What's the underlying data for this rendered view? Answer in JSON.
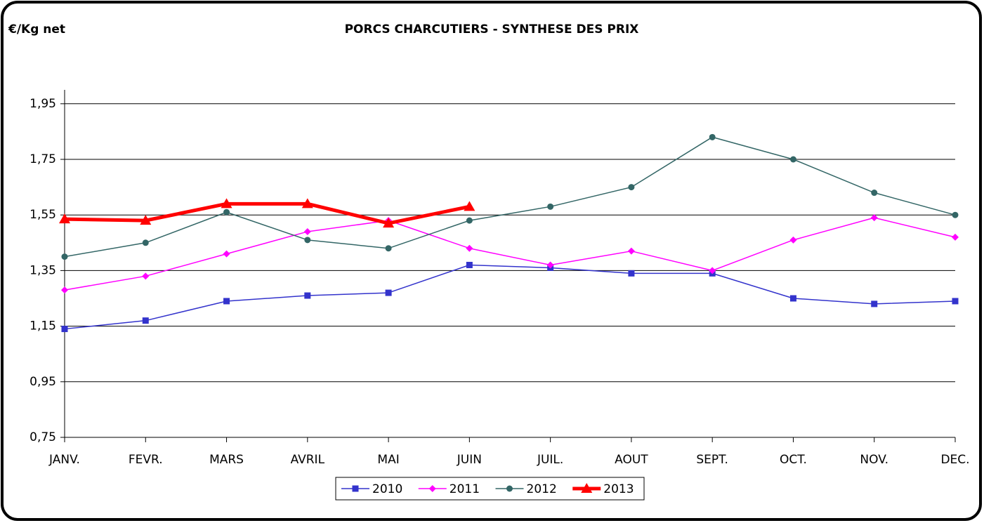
{
  "chart_data": {
    "type": "line",
    "title": "PORCS CHARCUTIERS - SYNTHESE DES PRIX",
    "y_label": "€/Kg net",
    "categories": [
      "JANV.",
      "FEVR.",
      "MARS",
      "AVRIL",
      "MAI",
      "JUIN",
      "JUIL.",
      "AOUT",
      "SEPT.",
      "OCT.",
      "NOV.",
      "DEC."
    ],
    "series": [
      {
        "name": "2010",
        "color": "#3333cc",
        "marker": "square",
        "line_width": 1.5,
        "values": [
          1.14,
          1.17,
          1.24,
          1.26,
          1.27,
          1.37,
          1.36,
          1.34,
          1.34,
          1.25,
          1.23,
          1.24
        ]
      },
      {
        "name": "2011",
        "color": "#ff00ff",
        "marker": "diamond",
        "line_width": 1.5,
        "values": [
          1.28,
          1.33,
          1.41,
          1.49,
          1.53,
          1.43,
          1.37,
          1.42,
          1.35,
          1.46,
          1.54,
          1.47
        ]
      },
      {
        "name": "2012",
        "color": "#336666",
        "marker": "circle",
        "line_width": 1.5,
        "values": [
          1.4,
          1.45,
          1.56,
          1.46,
          1.43,
          1.53,
          1.58,
          1.65,
          1.83,
          1.75,
          1.63,
          1.55
        ]
      },
      {
        "name": "2013",
        "color": "#ff0000",
        "marker": "triangle",
        "line_width": 5,
        "values": [
          1.535,
          1.53,
          1.59,
          1.59,
          1.52,
          1.58,
          null,
          null,
          null,
          null,
          null,
          null
        ]
      }
    ],
    "ylim": [
      0.75,
      2.0
    ],
    "yticks": [
      {
        "value": 0.75,
        "label": "0,75"
      },
      {
        "value": 0.95,
        "label": "0,95"
      },
      {
        "value": 1.15,
        "label": "1,15"
      },
      {
        "value": 1.35,
        "label": "1,35"
      },
      {
        "value": 1.55,
        "label": "1,55"
      },
      {
        "value": 1.75,
        "label": "1,75"
      },
      {
        "value": 1.95,
        "label": "1,95"
      }
    ],
    "grid": true,
    "legend": "bottom"
  }
}
